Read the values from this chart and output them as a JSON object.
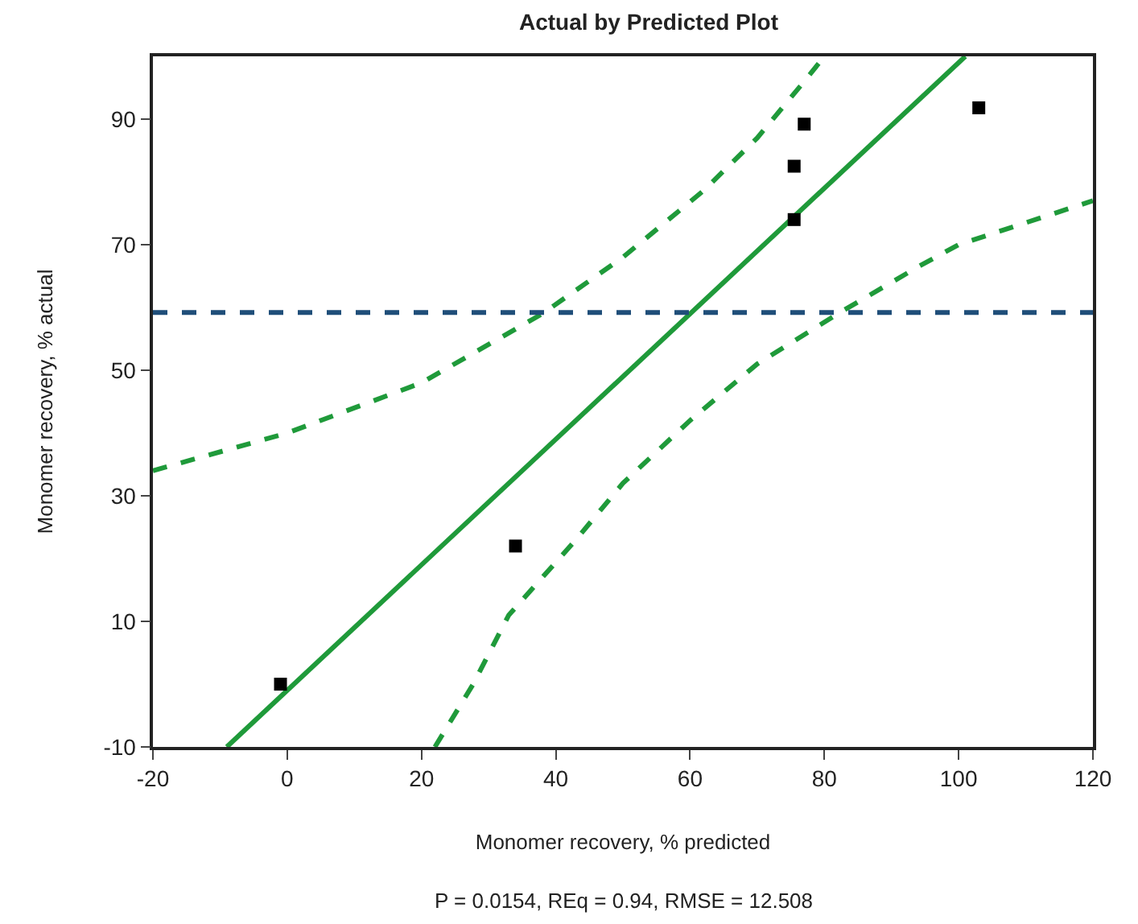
{
  "chart_data": {
    "type": "scatter",
    "title": "Actual by Predicted Plot",
    "xlabel": "Monomer recovery, % predicted",
    "ylabel": "Monomer recovery, % actual",
    "annotations": [
      "P = 0.0154, REq = 0.94, RMSE = 12.508"
    ],
    "xlim": [
      -20,
      120
    ],
    "xticks": [
      -20,
      0,
      20,
      40,
      60,
      80,
      100,
      120
    ],
    "ylim": [
      -10,
      100
    ],
    "yticks": [
      -10,
      10,
      30,
      50,
      70,
      90
    ],
    "grid": false,
    "series": [
      {
        "type": "line",
        "color": "#1f9a3a",
        "line_style": "solid",
        "marker": "none",
        "x": [
          -9,
          101
        ],
        "values": [
          -10,
          100
        ]
      },
      {
        "type": "line",
        "color": "#1f9a3a",
        "line_style": "dashed",
        "marker": "none",
        "x": [
          -20,
          0,
          20,
          38,
          50,
          62,
          70,
          77,
          80
        ],
        "values": [
          34,
          40,
          48,
          59,
          68,
          78.6,
          87,
          96,
          100
        ]
      },
      {
        "type": "line",
        "color": "#1f9a3a",
        "line_style": "dashed",
        "marker": "none",
        "x": [
          22,
          27.7,
          33,
          43,
          50,
          60,
          70,
          82,
          94,
          100,
          120
        ],
        "values": [
          -10,
          0,
          11,
          23,
          32,
          42,
          51,
          59,
          66.5,
          70,
          77
        ]
      },
      {
        "color": "#000000",
        "marker": "square",
        "x": [
          -1,
          34,
          75.5,
          75.5,
          77,
          103
        ],
        "values": [
          0,
          22,
          74,
          82.5,
          89.2,
          91.8
        ]
      }
    ],
    "ref_lines": [
      {
        "axis": "y",
        "value": 59.2,
        "color": "#1f4e79",
        "line_style": "dashed"
      }
    ]
  }
}
